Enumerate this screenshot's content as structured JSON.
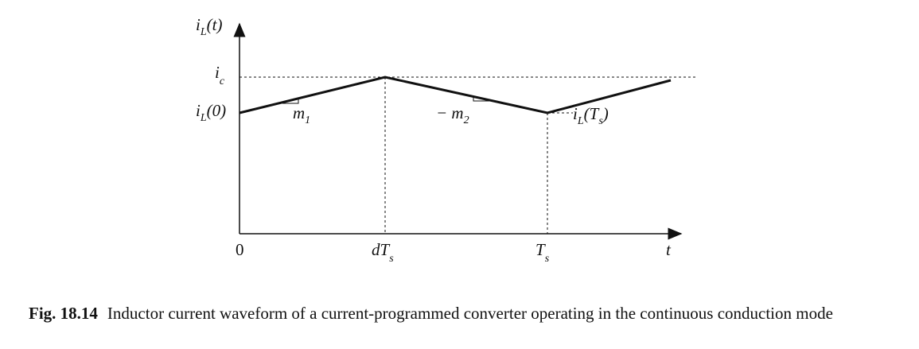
{
  "diagram": {
    "y_axis_label": {
      "base": "i",
      "sub": "L",
      "tail": "(t)"
    },
    "peak_label": {
      "base": "i",
      "sub": "c"
    },
    "start_label": {
      "base": "i",
      "sub": "L",
      "tail": "(0)"
    },
    "slope_up_label": {
      "base": "m",
      "sub": "1"
    },
    "slope_down_label": {
      "base": "− m",
      "sub": "2"
    },
    "end_label": {
      "base": "i",
      "sub": "L",
      "mid": "(T",
      "sub2": "s",
      "tail": ")"
    },
    "x_origin_label": "0",
    "x_dts_label": {
      "base": "dT",
      "sub": "s"
    },
    "x_ts_label": {
      "base": "T",
      "sub": "s"
    },
    "x_axis_label": "t"
  },
  "caption": {
    "number": "Fig. 18.14",
    "text": "Inductor current waveform of a current-programmed converter operating in the continuous conduction mode"
  }
}
